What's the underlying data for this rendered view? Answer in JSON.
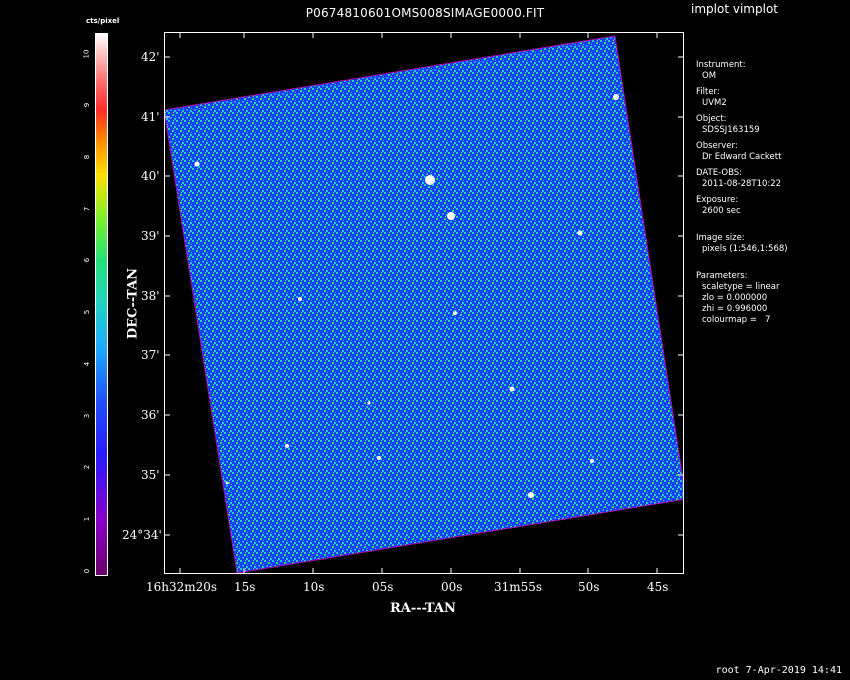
{
  "window": {
    "title": "P0674810601OMS008SIMAGE0000.FIT",
    "app_label": "implot vimplot",
    "footer": "root   7-Apr-2019 14:41"
  },
  "colorbar": {
    "title": "cts/pixel",
    "ticks": [
      "0",
      "1",
      "2",
      "3",
      "4",
      "5",
      "6",
      "7",
      "8",
      "9",
      "10"
    ]
  },
  "axes": {
    "xlabel": "RA---TAN",
    "ylabel": "DEC--TAN",
    "x_ticks": [
      "16h32m20s",
      "15s",
      "10s",
      "05s",
      "00s",
      "31m55s",
      "50s",
      "45s"
    ],
    "y_ticks": [
      "24°34'",
      "35'",
      "36'",
      "37'",
      "38'",
      "39'",
      "40'",
      "41'",
      "42'"
    ]
  },
  "info": {
    "instrument_label": "Instrument:",
    "instrument": "OM",
    "filter_label": "Filter:",
    "filter": "UVM2",
    "object_label": "Object:",
    "object": "SDSSJ163159",
    "observer_label": "Observer:",
    "observer": "Dr Edward Cackett",
    "date_label": "DATE-OBS:",
    "date": "2011-08-28T10:22",
    "exposure_label": "Exposure:",
    "exposure": "2600 sec",
    "size_label": "Image size:",
    "size": "pixels (1:546,1:568)",
    "params_label": "Parameters:",
    "scaletype": "scaletype = linear",
    "zlo": "zlo = 0.000000",
    "zhi": "zhi = 0.996000",
    "colourmap": "colourmap =   7"
  }
}
